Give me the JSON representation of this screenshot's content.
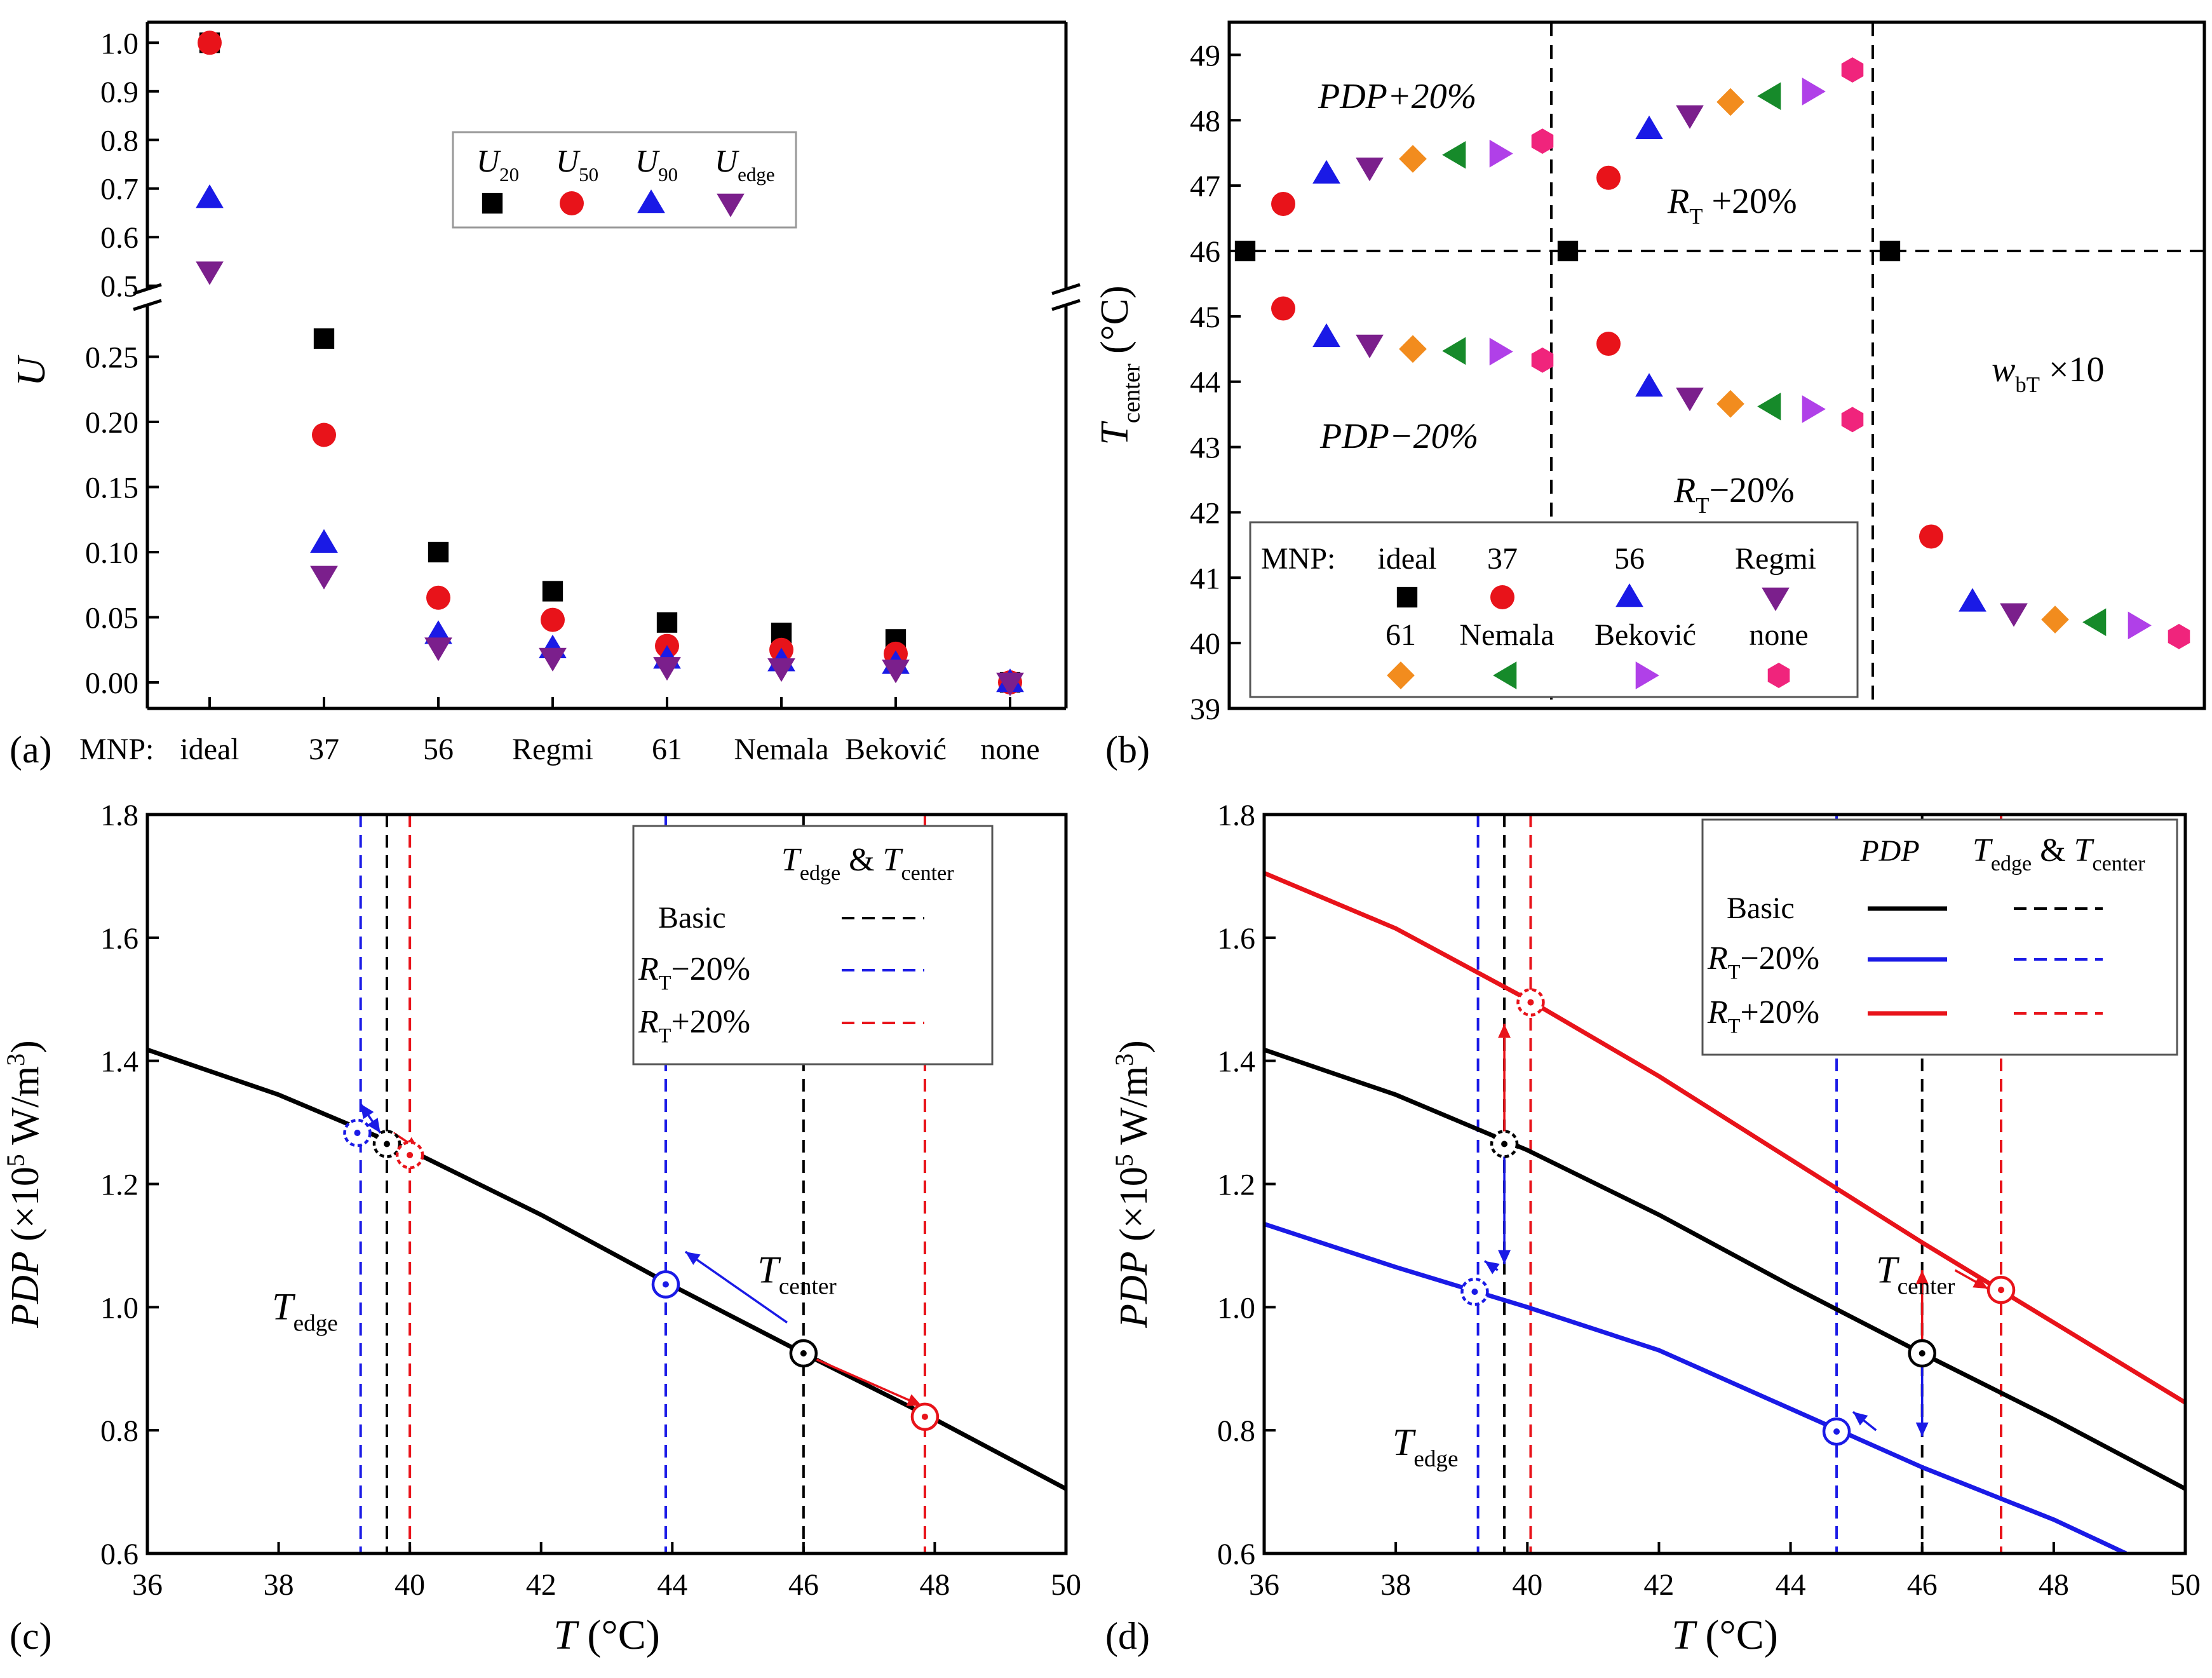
{
  "chart_data": [
    {
      "panel": "(a)",
      "type": "scatter",
      "ylabel": "U",
      "xlabel_prefix": "MNP:",
      "categories": [
        "ideal",
        "37",
        "56",
        "Regmi",
        "61",
        "Nemala",
        "Beković",
        "none"
      ],
      "ylim_lower": [
        -0.02,
        0.28
      ],
      "ylim_upper": [
        0.48,
        1.02
      ],
      "yticks_lower": [
        "0.00",
        "0.05",
        "0.10",
        "0.15",
        "0.20",
        "0.25"
      ],
      "yticks_upper": [
        "0.5",
        "0.6",
        "0.7",
        "0.8",
        "0.9",
        "1.0"
      ],
      "legend": [
        {
          "base": "U",
          "sub": "20",
          "marker": "square",
          "color": "#000000"
        },
        {
          "base": "U",
          "sub": "50",
          "marker": "circle",
          "color": "#e8131a"
        },
        {
          "base": "U",
          "sub": "90",
          "marker": "triangle-up",
          "color": "#1a1ae6"
        },
        {
          "base": "U",
          "sub": "edge",
          "marker": "triangle-down",
          "color": "#7b1f8c"
        }
      ],
      "series": [
        {
          "name": "U20",
          "values": [
            1.0,
            0.264,
            0.1,
            0.07,
            0.046,
            0.038,
            0.033,
            0.0
          ]
        },
        {
          "name": "U50",
          "values": [
            1.0,
            0.19,
            0.065,
            0.048,
            0.028,
            0.025,
            0.022,
            0.0
          ]
        },
        {
          "name": "U90",
          "values": [
            0.68,
            0.107,
            0.037,
            0.026,
            0.018,
            0.016,
            0.014,
            0.0
          ]
        },
        {
          "name": "Uedge",
          "values": [
            0.53,
            0.082,
            0.027,
            0.019,
            0.012,
            0.011,
            0.01,
            0.0
          ]
        }
      ]
    },
    {
      "panel": "(b)",
      "type": "scatter",
      "ylabel_base": "T",
      "ylabel_sub": "center",
      "ylabel_unit": "(°C)",
      "ylim": [
        39,
        49.5
      ],
      "yticks": [
        "39",
        "40",
        "41",
        "42",
        "43",
        "44",
        "45",
        "46",
        "47",
        "48",
        "49"
      ],
      "baseline": 46,
      "groups": [
        {
          "label": "PDP+20%",
          "values": [
            46.72,
            47.18,
            47.28,
            47.41,
            47.47,
            47.49,
            47.68
          ]
        },
        {
          "label": "PDP−20%",
          "values": [
            45.12,
            44.68,
            44.57,
            44.5,
            44.47,
            44.46,
            44.33
          ]
        },
        {
          "label_base": "R",
          "label_sub": "T",
          "label_rest": " +20%",
          "values": [
            47.12,
            47.86,
            48.08,
            48.28,
            48.37,
            48.44,
            48.77
          ]
        },
        {
          "label_base": "R",
          "label_sub": "T",
          "label_rest": "−20%",
          "values": [
            44.58,
            43.92,
            43.76,
            43.66,
            43.62,
            43.58,
            43.42
          ]
        },
        {
          "label_base": "w",
          "label_sub": "bT",
          "label_rest": " ×10",
          "values": [
            41.63,
            40.63,
            40.46,
            40.36,
            40.32,
            40.27,
            40.1
          ]
        }
      ],
      "legend": {
        "prefix": "MNP:",
        "items": [
          {
            "label": "ideal",
            "marker": "square",
            "color": "#000000"
          },
          {
            "label": "37",
            "marker": "circle",
            "color": "#e8131a"
          },
          {
            "label": "56",
            "marker": "triangle-up",
            "color": "#1a1ae6"
          },
          {
            "label": "Regmi",
            "marker": "triangle-down",
            "color": "#7b1f8c"
          },
          {
            "label": "61",
            "marker": "diamond",
            "color": "#f28c1e"
          },
          {
            "label": "Nemala",
            "marker": "triangle-left",
            "color": "#168a2a"
          },
          {
            "label": "Beković",
            "marker": "triangle-right",
            "color": "#b040e8"
          },
          {
            "label": "none",
            "marker": "hexagon",
            "color": "#f0247c"
          }
        ]
      }
    },
    {
      "panel": "(c)",
      "type": "line",
      "xlabel_base": "T",
      "xlabel_unit": "(°C)",
      "ylabel_base": "PDP",
      "ylabel_rest": " (×10",
      "ylabel_sup1": "5",
      "ylabel_mid": " W/m",
      "ylabel_sup2": "3",
      "ylabel_end": ")",
      "xlim": [
        36,
        50
      ],
      "ylim": [
        0.6,
        1.8
      ],
      "xticks": [
        "36",
        "38",
        "40",
        "42",
        "44",
        "46",
        "48",
        "50"
      ],
      "yticks": [
        "0.6",
        "0.8",
        "1.0",
        "1.2",
        "1.4",
        "1.6",
        "1.8"
      ],
      "curves": [
        {
          "name": "Basic",
          "color": "#000000",
          "x": [
            36,
            38,
            40,
            42,
            44,
            46,
            48,
            50
          ],
          "y": [
            1.418,
            1.345,
            1.255,
            1.15,
            1.035,
            0.925,
            0.818,
            0.705
          ]
        }
      ],
      "vlines": [
        {
          "x": 39.25,
          "color": "#1a1ae6"
        },
        {
          "x": 39.65,
          "color": "#000000"
        },
        {
          "x": 40.0,
          "color": "#e8131a"
        },
        {
          "x": 43.9,
          "color": "#1a1ae6"
        },
        {
          "x": 46.0,
          "color": "#000000"
        },
        {
          "x": 47.85,
          "color": "#e8131a"
        }
      ],
      "markers": [
        {
          "x": 39.2,
          "y": 1.283,
          "color": "#1a1ae6",
          "dashed": true
        },
        {
          "x": 39.65,
          "y": 1.265,
          "color": "#000000",
          "dashed": true
        },
        {
          "x": 40.0,
          "y": 1.247,
          "color": "#e8131a",
          "dashed": true
        },
        {
          "x": 43.9,
          "y": 1.037,
          "color": "#1a1ae6",
          "dashed": false
        },
        {
          "x": 46.0,
          "y": 0.925,
          "color": "#000000",
          "dashed": false
        },
        {
          "x": 47.85,
          "y": 0.822,
          "color": "#e8131a",
          "dashed": false
        }
      ],
      "arrows": [
        {
          "from": [
            39.55,
            1.283
          ],
          "to": [
            39.25,
            1.33
          ],
          "color": "#1a1ae6",
          "double": true
        },
        {
          "from": [
            39.75,
            1.283
          ],
          "to": [
            40.15,
            1.255
          ],
          "color": "#e8131a",
          "double": false
        },
        {
          "from": [
            45.75,
            0.975
          ],
          "to": [
            44.2,
            1.09
          ],
          "color": "#1a1ae6",
          "double": false
        },
        {
          "from": [
            46.2,
            0.915
          ],
          "to": [
            47.8,
            0.84
          ],
          "color": "#e8131a",
          "double": false
        }
      ],
      "annotations": [
        {
          "base": "T",
          "sub": "edge",
          "x": 37.9,
          "y": 0.98
        },
        {
          "base": "T",
          "sub": "center",
          "x": 45.3,
          "y": 1.04
        }
      ],
      "legend": {
        "header_base1": "T",
        "header_sub1": "edge",
        "header_amp": " & ",
        "header_base2": "T",
        "header_sub2": "center",
        "items": [
          {
            "label": "Basic",
            "color": "#000000"
          },
          {
            "label_base": "R",
            "label_sub": "T",
            "label_rest": "−20%",
            "color": "#1a1ae6"
          },
          {
            "label_base": "R",
            "label_sub": "T",
            "label_rest": "+20%",
            "color": "#e8131a"
          }
        ]
      }
    },
    {
      "panel": "(d)",
      "type": "line",
      "xlabel_base": "T",
      "xlabel_unit": "(°C)",
      "ylabel_base": "PDP",
      "ylabel_rest": " (×10",
      "ylabel_sup1": "5",
      "ylabel_mid": " W/m",
      "ylabel_sup2": "3",
      "ylabel_end": ")",
      "xlim": [
        36,
        50
      ],
      "ylim": [
        0.6,
        1.8
      ],
      "xticks": [
        "36",
        "38",
        "40",
        "42",
        "44",
        "46",
        "48",
        "50"
      ],
      "yticks": [
        "0.6",
        "0.8",
        "1.0",
        "1.2",
        "1.4",
        "1.6",
        "1.8"
      ],
      "curves": [
        {
          "name": "Basic",
          "color": "#000000",
          "x": [
            36,
            38,
            40,
            42,
            44,
            46,
            48,
            50
          ],
          "y": [
            1.418,
            1.345,
            1.255,
            1.15,
            1.035,
            0.925,
            0.818,
            0.705
          ]
        },
        {
          "name": "RT−20%",
          "color": "#1a1ae6",
          "x": [
            36,
            38,
            40,
            42,
            44,
            46,
            48,
            49.1
          ],
          "y": [
            1.135,
            1.065,
            1.0,
            0.93,
            0.835,
            0.74,
            0.655,
            0.6
          ]
        },
        {
          "name": "RT+20%",
          "color": "#e8131a",
          "x": [
            36,
            38,
            40,
            42,
            44,
            46,
            48,
            50
          ],
          "y": [
            1.705,
            1.615,
            1.5,
            1.375,
            1.24,
            1.105,
            0.975,
            0.845
          ]
        }
      ],
      "vlines": [
        {
          "x": 39.25,
          "color": "#1a1ae6"
        },
        {
          "x": 39.65,
          "color": "#000000"
        },
        {
          "x": 40.05,
          "color": "#e8131a"
        },
        {
          "x": 44.7,
          "color": "#1a1ae6"
        },
        {
          "x": 46.0,
          "color": "#000000"
        },
        {
          "x": 47.2,
          "color": "#e8131a"
        }
      ],
      "markers": [
        {
          "x": 39.2,
          "y": 1.025,
          "color": "#1a1ae6",
          "dashed": true
        },
        {
          "x": 39.65,
          "y": 1.265,
          "color": "#000000",
          "dashed": true
        },
        {
          "x": 40.05,
          "y": 1.495,
          "color": "#e8131a",
          "dashed": true
        },
        {
          "x": 44.7,
          "y": 0.798,
          "color": "#1a1ae6",
          "dashed": false
        },
        {
          "x": 46.0,
          "y": 0.925,
          "color": "#000000",
          "dashed": false
        },
        {
          "x": 47.2,
          "y": 1.028,
          "color": "#e8131a",
          "dashed": false
        }
      ],
      "arrows": [
        {
          "from": [
            39.65,
            1.265
          ],
          "to": [
            39.65,
            1.46
          ],
          "color": "#e8131a",
          "double": false
        },
        {
          "from": [
            39.65,
            1.265
          ],
          "to": [
            39.65,
            1.07
          ],
          "color": "#1a1ae6",
          "double": false
        },
        {
          "from": [
            39.55,
            1.06
          ],
          "to": [
            39.35,
            1.075
          ],
          "color": "#1a1ae6",
          "double": false
        },
        {
          "from": [
            46.0,
            0.925
          ],
          "to": [
            46.0,
            0.79
          ],
          "color": "#1a1ae6",
          "double": false
        },
        {
          "from": [
            46.0,
            0.925
          ],
          "to": [
            46.0,
            1.06
          ],
          "color": "#e8131a",
          "double": false
        },
        {
          "from": [
            45.3,
            0.8
          ],
          "to": [
            44.95,
            0.83
          ],
          "color": "#1a1ae6",
          "double": false
        },
        {
          "from": [
            46.5,
            1.06
          ],
          "to": [
            47.0,
            1.03
          ],
          "color": "#e8131a",
          "double": false
        }
      ],
      "annotations": [
        {
          "base": "T",
          "sub": "edge",
          "x": 37.95,
          "y": 0.76
        },
        {
          "base": "T",
          "sub": "center",
          "x": 45.3,
          "y": 1.04
        }
      ],
      "legend": {
        "col1": "PDP",
        "header_base1": "T",
        "header_sub1": "edge",
        "header_amp": " & ",
        "header_base2": "T",
        "header_sub2": "center",
        "items": [
          {
            "label": "Basic",
            "color": "#000000"
          },
          {
            "label_base": "R",
            "label_sub": "T",
            "label_rest": "−20%",
            "color": "#1a1ae6"
          },
          {
            "label_base": "R",
            "label_sub": "T",
            "label_rest": "+20%",
            "color": "#e8131a"
          }
        ]
      }
    }
  ]
}
